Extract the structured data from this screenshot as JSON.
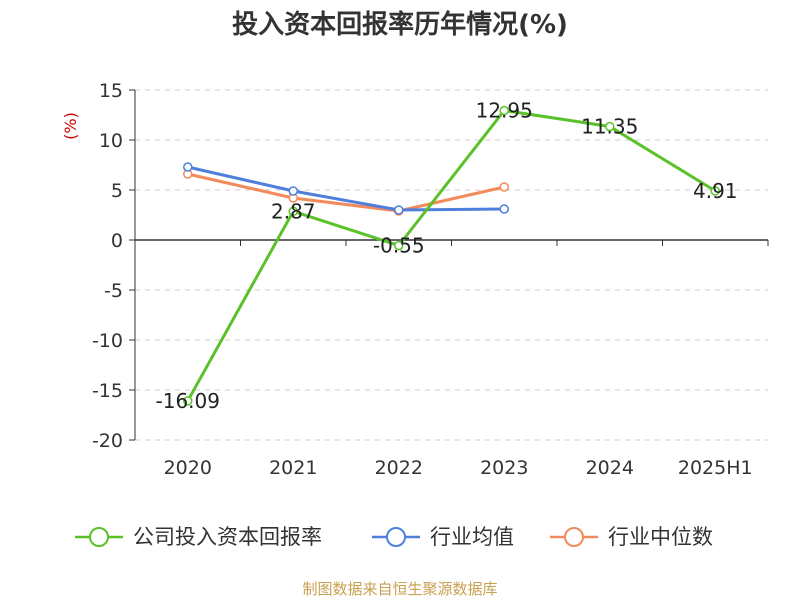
{
  "chart_data": {
    "type": "line",
    "title": "投入资本回报率历年情况(%)",
    "ylabel": "(%)",
    "categories": [
      "2020",
      "2021",
      "2022",
      "2023",
      "2024",
      "2025H1"
    ],
    "ylim": [
      -20,
      15
    ],
    "yticks": [
      15,
      10,
      5,
      0,
      -5,
      -10,
      -15,
      -20
    ],
    "grid": true,
    "legend_position": "bottom",
    "series": [
      {
        "name": "公司投入资本回报率",
        "color": "#5ac229",
        "values": [
          -16.09,
          2.87,
          -0.55,
          12.95,
          11.35,
          4.91
        ],
        "labels": [
          "-16.09",
          "2.87",
          "-0.55",
          "12.95",
          "11.35",
          "4.91"
        ]
      },
      {
        "name": "行业均值",
        "color": "#4f7fdc",
        "values": [
          7.3,
          4.9,
          3.0,
          3.1,
          null,
          null
        ]
      },
      {
        "name": "行业中位数",
        "color": "#f28a5c",
        "values": [
          6.6,
          4.2,
          2.9,
          5.3,
          null,
          null
        ]
      }
    ]
  },
  "source": "制图数据来自恒生聚源数据库"
}
